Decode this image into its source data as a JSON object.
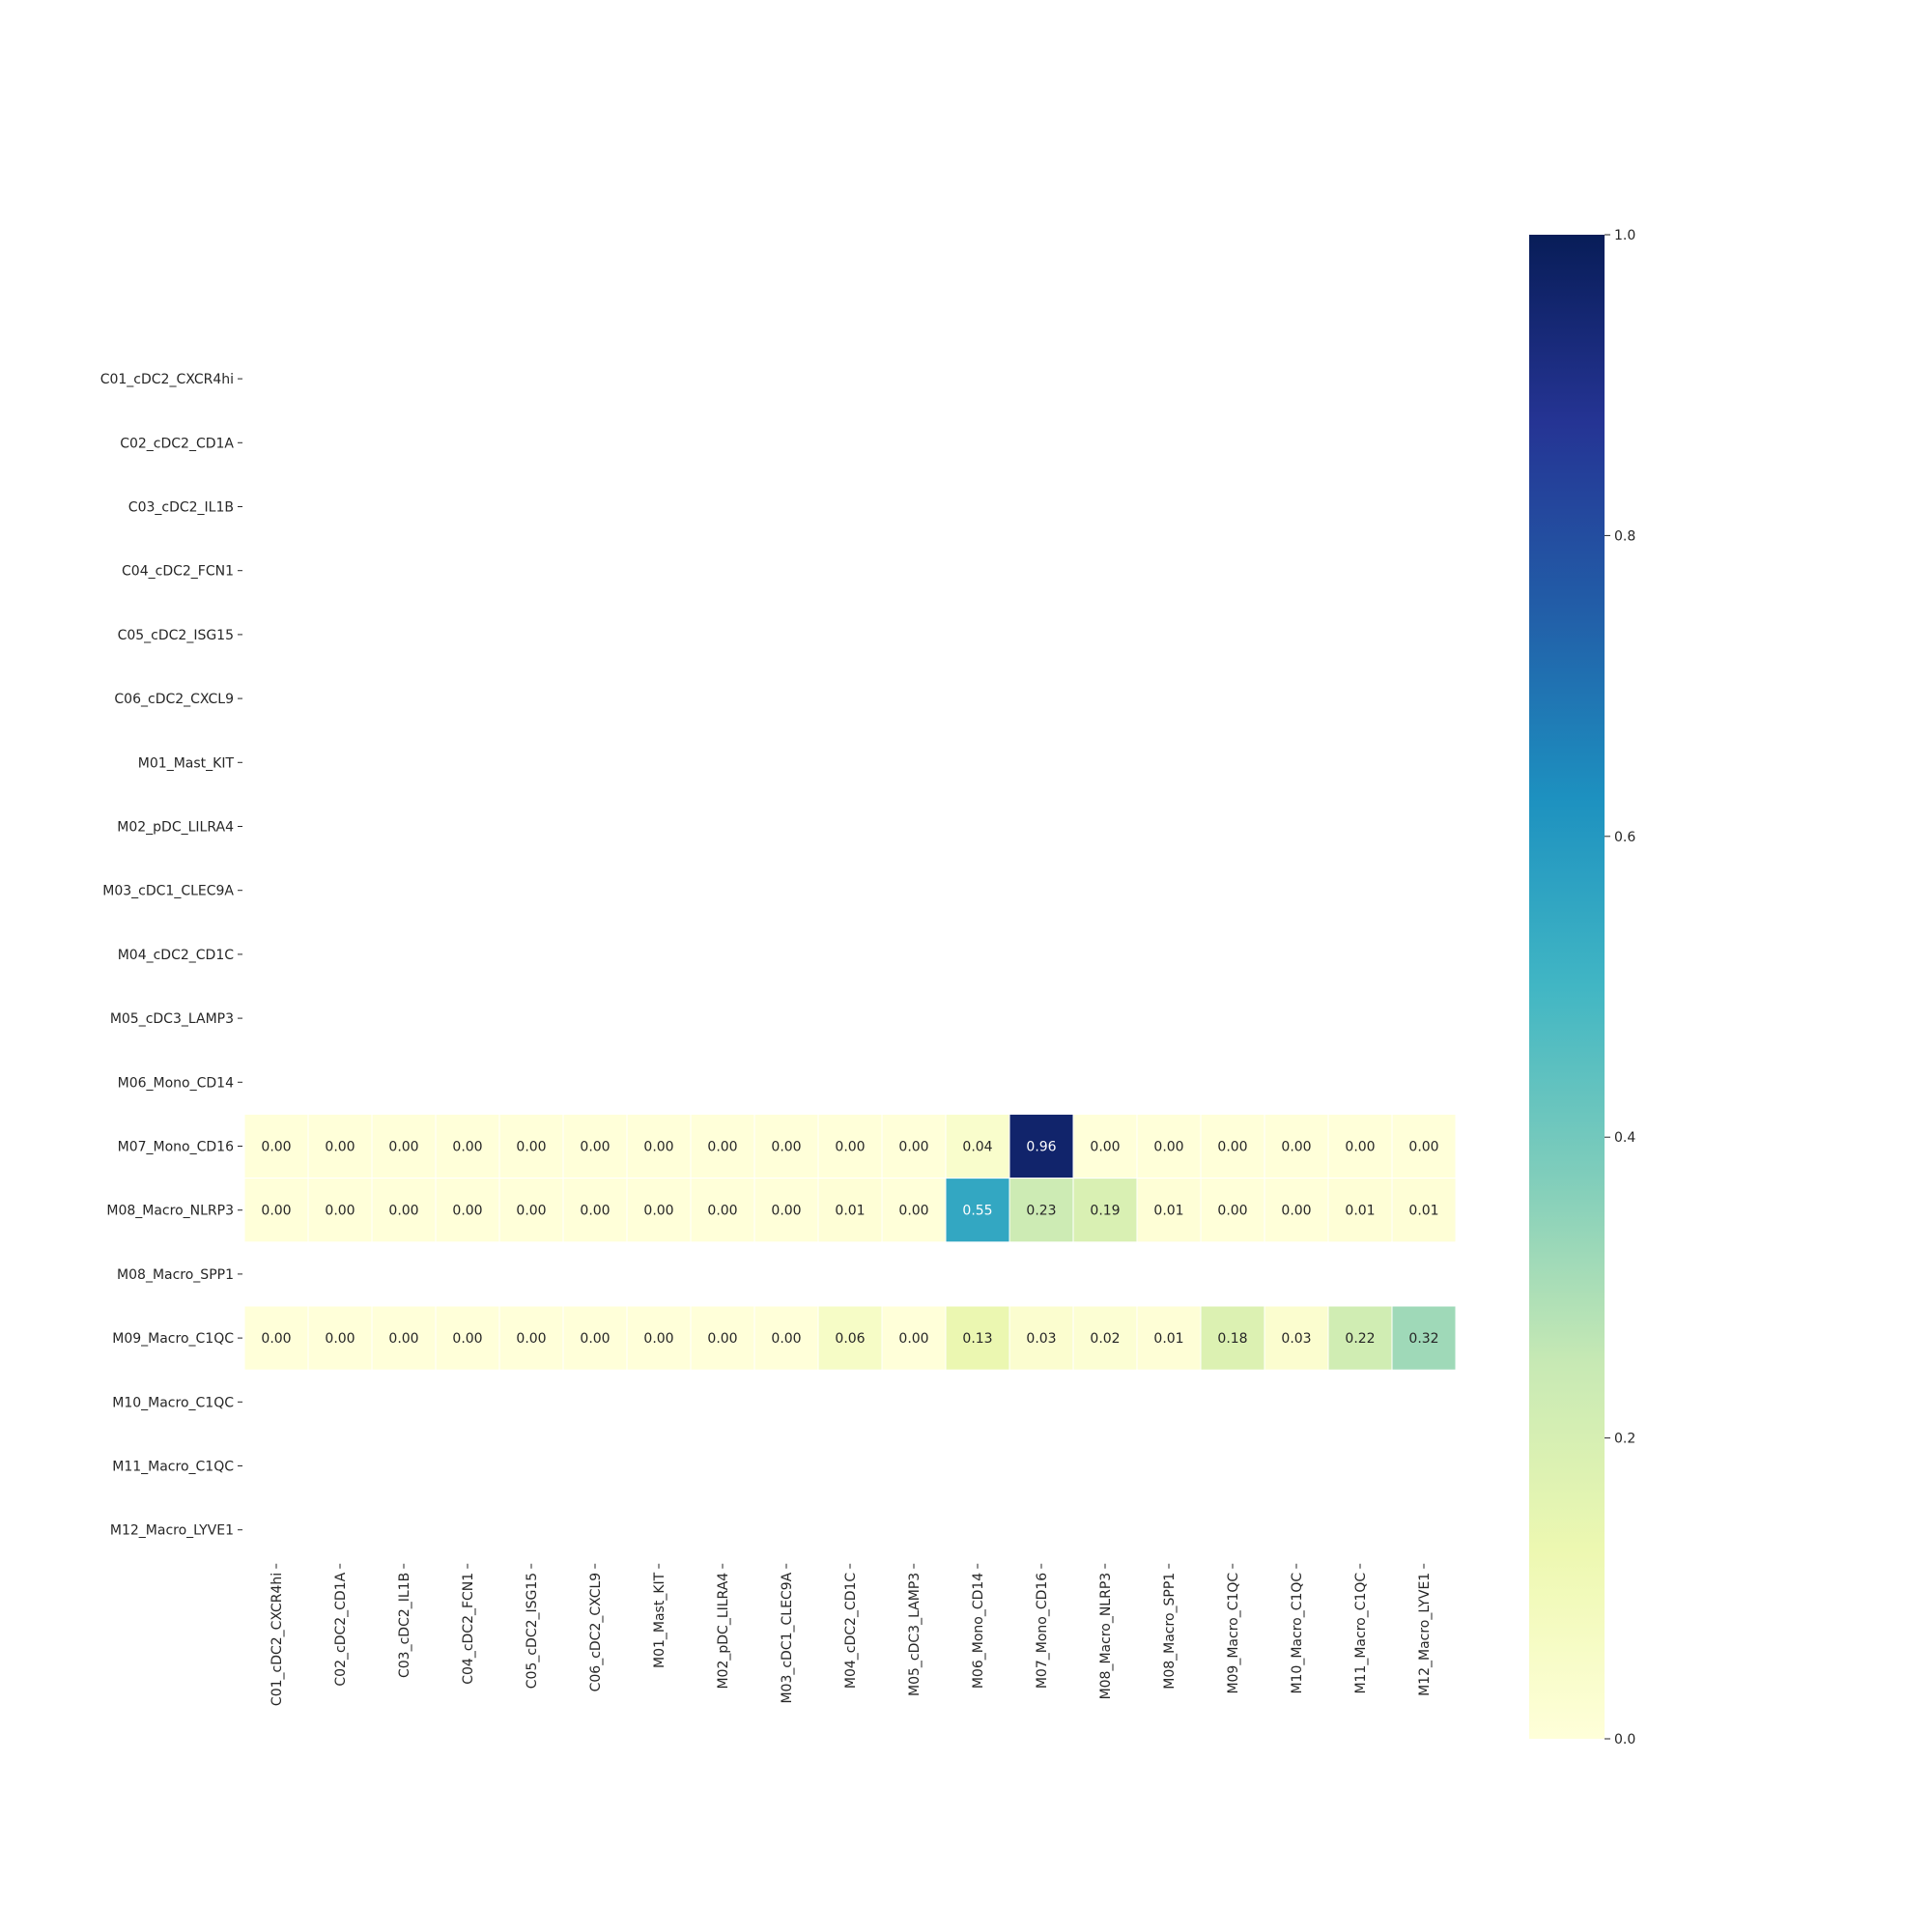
{
  "chart_data": {
    "type": "heatmap",
    "row_labels": [
      "C01_cDC2_CXCR4hi",
      "C02_cDC2_CD1A",
      "C03_cDC2_IL1B",
      "C04_cDC2_FCN1",
      "C05_cDC2_ISG15",
      "C06_cDC2_CXCL9",
      "M01_Mast_KIT",
      "M02_pDC_LILRA4",
      "M03_cDC1_CLEC9A",
      "M04_cDC2_CD1C",
      "M05_cDC3_LAMP3",
      "M06_Mono_CD14",
      "M07_Mono_CD16",
      "M08_Macro_NLRP3",
      "M08_Macro_SPP1",
      "M09_Macro_C1QC",
      "M10_Macro_C1QC",
      "M11_Macro_C1QC",
      "M12_Macro_LYVE1"
    ],
    "col_labels": [
      "C01_cDC2_CXCR4hi",
      "C02_cDC2_CD1A",
      "C03_cDC2_IL1B",
      "C04_cDC2_FCN1",
      "C05_cDC2_ISG15",
      "C06_cDC2_CXCL9",
      "M01_Mast_KIT",
      "M02_pDC_LILRA4",
      "M03_cDC1_CLEC9A",
      "M04_cDC2_CD1C",
      "M05_cDC3_LAMP3",
      "M06_Mono_CD14",
      "M07_Mono_CD16",
      "M08_Macro_NLRP3",
      "M08_Macro_SPP1",
      "M09_Macro_C1QC",
      "M10_Macro_C1QC",
      "M11_Macro_C1QC",
      "M12_Macro_LYVE1"
    ],
    "values": [
      [
        null,
        null,
        null,
        null,
        null,
        null,
        null,
        null,
        null,
        null,
        null,
        null,
        null,
        null,
        null,
        null,
        null,
        null,
        null
      ],
      [
        null,
        null,
        null,
        null,
        null,
        null,
        null,
        null,
        null,
        null,
        null,
        null,
        null,
        null,
        null,
        null,
        null,
        null,
        null
      ],
      [
        null,
        null,
        null,
        null,
        null,
        null,
        null,
        null,
        null,
        null,
        null,
        null,
        null,
        null,
        null,
        null,
        null,
        null,
        null
      ],
      [
        null,
        null,
        null,
        null,
        null,
        null,
        null,
        null,
        null,
        null,
        null,
        null,
        null,
        null,
        null,
        null,
        null,
        null,
        null
      ],
      [
        null,
        null,
        null,
        null,
        null,
        null,
        null,
        null,
        null,
        null,
        null,
        null,
        null,
        null,
        null,
        null,
        null,
        null,
        null
      ],
      [
        null,
        null,
        null,
        null,
        null,
        null,
        null,
        null,
        null,
        null,
        null,
        null,
        null,
        null,
        null,
        null,
        null,
        null,
        null
      ],
      [
        null,
        null,
        null,
        null,
        null,
        null,
        null,
        null,
        null,
        null,
        null,
        null,
        null,
        null,
        null,
        null,
        null,
        null,
        null
      ],
      [
        null,
        null,
        null,
        null,
        null,
        null,
        null,
        null,
        null,
        null,
        null,
        null,
        null,
        null,
        null,
        null,
        null,
        null,
        null
      ],
      [
        null,
        null,
        null,
        null,
        null,
        null,
        null,
        null,
        null,
        null,
        null,
        null,
        null,
        null,
        null,
        null,
        null,
        null,
        null
      ],
      [
        null,
        null,
        null,
        null,
        null,
        null,
        null,
        null,
        null,
        null,
        null,
        null,
        null,
        null,
        null,
        null,
        null,
        null,
        null
      ],
      [
        null,
        null,
        null,
        null,
        null,
        null,
        null,
        null,
        null,
        null,
        null,
        null,
        null,
        null,
        null,
        null,
        null,
        null,
        null
      ],
      [
        null,
        null,
        null,
        null,
        null,
        null,
        null,
        null,
        null,
        null,
        null,
        null,
        null,
        null,
        null,
        null,
        null,
        null,
        null
      ],
      [
        0.0,
        0.0,
        0.0,
        0.0,
        0.0,
        0.0,
        0.0,
        0.0,
        0.0,
        0.0,
        0.0,
        0.04,
        0.96,
        0.0,
        0.0,
        0.0,
        0.0,
        0.0,
        0.0
      ],
      [
        0.0,
        0.0,
        0.0,
        0.0,
        0.0,
        0.0,
        0.0,
        0.0,
        0.0,
        0.01,
        0.0,
        0.55,
        0.23,
        0.19,
        0.01,
        0.0,
        0.0,
        0.01,
        0.01
      ],
      [
        null,
        null,
        null,
        null,
        null,
        null,
        null,
        null,
        null,
        null,
        null,
        null,
        null,
        null,
        null,
        null,
        null,
        null,
        null
      ],
      [
        0.0,
        0.0,
        0.0,
        0.0,
        0.0,
        0.0,
        0.0,
        0.0,
        0.0,
        0.06,
        0.0,
        0.13,
        0.03,
        0.02,
        0.01,
        0.18,
        0.03,
        0.22,
        0.32
      ],
      [
        null,
        null,
        null,
        null,
        null,
        null,
        null,
        null,
        null,
        null,
        null,
        null,
        null,
        null,
        null,
        null,
        null,
        null,
        null
      ],
      [
        null,
        null,
        null,
        null,
        null,
        null,
        null,
        null,
        null,
        null,
        null,
        null,
        null,
        null,
        null,
        null,
        null,
        null,
        null
      ],
      [
        null,
        null,
        null,
        null,
        null,
        null,
        null,
        null,
        null,
        null,
        null,
        null,
        null,
        null,
        null,
        null,
        null,
        null,
        null
      ]
    ],
    "annotations": "values shown to 2 decimals",
    "colormap": "YlGnBu",
    "vmin": 0.0,
    "vmax": 1.0,
    "colorbar": {
      "ticks": [
        0.0,
        0.2,
        0.4,
        0.6,
        0.8,
        1.0
      ],
      "tick_labels": [
        "0.0",
        "0.2",
        "0.4",
        "0.6",
        "0.8",
        "1.0"
      ],
      "placement": "right"
    },
    "title": "",
    "xlabel": "",
    "ylabel": ""
  }
}
